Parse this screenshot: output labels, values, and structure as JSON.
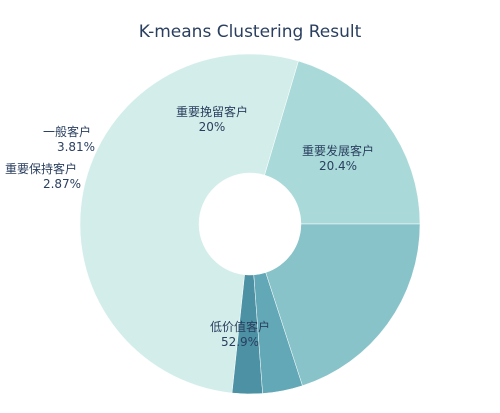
{
  "chart_data": {
    "type": "pie",
    "title": "K-means Clustering Result",
    "hole": true,
    "slices": [
      {
        "label": "重要发展客户",
        "value": 20.4,
        "pct": "20.4%",
        "color": "#a9dad9"
      },
      {
        "label": "低价值客户",
        "value": 52.9,
        "pct": "52.9%",
        "color": "#d3eeea"
      },
      {
        "label": "重要保持客户",
        "value": 2.87,
        "pct": "2.87%",
        "color": "#4c91a4"
      },
      {
        "label": "一般客户",
        "value": 3.81,
        "pct": "3.81%",
        "color": "#62a8b7"
      },
      {
        "label": "重要挽留客户",
        "value": 20,
        "pct": "20%",
        "color": "#87c3c9"
      }
    ]
  }
}
